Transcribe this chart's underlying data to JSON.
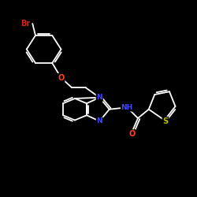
{
  "background_color": "#000000",
  "bond_color": "#ffffff",
  "atom_colors": {
    "Br": "#cc2222",
    "O": "#ff4422",
    "N": "#4444ff",
    "S": "#bbbb00",
    "H": "#ffffff",
    "C": "#ffffff"
  },
  "figsize": [
    2.5,
    2.5
  ],
  "dpi": 100
}
